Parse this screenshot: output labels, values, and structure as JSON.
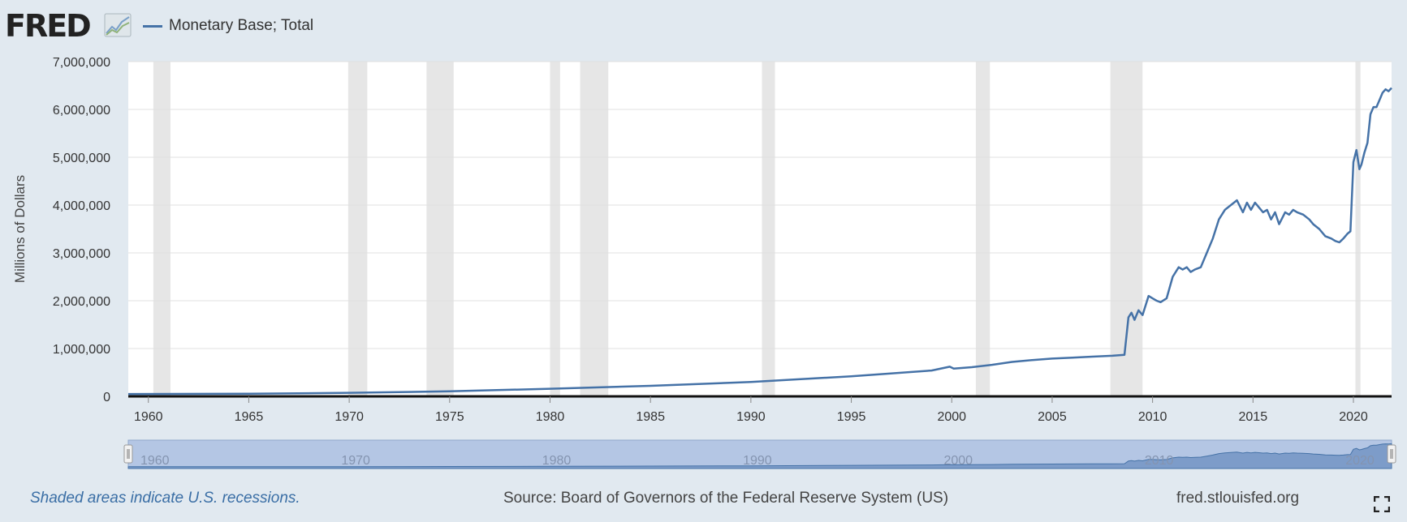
{
  "header": {
    "logo_text": "FRED",
    "logo_icon": "fred-chart-icon"
  },
  "colors": {
    "series": "#4572a7",
    "recession": "#e6e6e6",
    "background": "#e1e9f0",
    "plot_bg": "#ffffff",
    "navigator_fill": "#b4c6e4"
  },
  "chart_data": {
    "type": "line",
    "ylabel": "Millions of Dollars",
    "xlabel": "",
    "ylim": [
      0,
      7000000
    ],
    "xlim": [
      1959.0,
      2021.9
    ],
    "y_ticks": [
      0,
      1000000,
      2000000,
      3000000,
      4000000,
      5000000,
      6000000,
      7000000
    ],
    "y_tick_labels": [
      "0",
      "1,000,000",
      "2,000,000",
      "3,000,000",
      "4,000,000",
      "5,000,000",
      "6,000,000",
      "7,000,000"
    ],
    "x_ticks": [
      1960,
      1965,
      1970,
      1975,
      1980,
      1985,
      1990,
      1995,
      2000,
      2005,
      2010,
      2015,
      2020
    ],
    "x_tick_labels": [
      "1960",
      "1965",
      "1970",
      "1975",
      "1980",
      "1985",
      "1990",
      "1995",
      "2000",
      "2005",
      "2010",
      "2015",
      "2020"
    ],
    "grid": true,
    "legend": "top-left",
    "recessions": [
      [
        1960.25,
        1961.1
      ],
      [
        1969.95,
        1970.9
      ],
      [
        1973.85,
        1975.2
      ],
      [
        1980.0,
        1980.5
      ],
      [
        1981.5,
        1982.9
      ],
      [
        1990.55,
        1991.2
      ],
      [
        2001.2,
        2001.9
      ],
      [
        2007.9,
        2009.5
      ],
      [
        2020.1,
        2020.35
      ]
    ],
    "series": [
      {
        "name": "Monetary Base; Total",
        "x": [
          1959.0,
          1965.0,
          1970.0,
          1975.0,
          1980.0,
          1985.0,
          1990.0,
          1995.0,
          1999.0,
          1999.9,
          2000.1,
          2001.0,
          2002.0,
          2003.0,
          2004.0,
          2005.0,
          2006.0,
          2007.0,
          2008.0,
          2008.6,
          2008.8,
          2008.95,
          2009.1,
          2009.3,
          2009.5,
          2009.8,
          2010.0,
          2010.2,
          2010.4,
          2010.7,
          2011.0,
          2011.3,
          2011.5,
          2011.7,
          2011.9,
          2012.1,
          2012.4,
          2012.7,
          2013.0,
          2013.3,
          2013.6,
          2013.9,
          2014.2,
          2014.5,
          2014.7,
          2014.9,
          2015.1,
          2015.3,
          2015.5,
          2015.7,
          2015.9,
          2016.1,
          2016.3,
          2016.6,
          2016.8,
          2017.0,
          2017.2,
          2017.5,
          2017.8,
          2018.0,
          2018.3,
          2018.6,
          2018.9,
          2019.1,
          2019.3,
          2019.5,
          2019.7,
          2019.85,
          2020.0,
          2020.15,
          2020.3,
          2020.4,
          2020.55,
          2020.7,
          2020.85,
          2021.0,
          2021.15,
          2021.3,
          2021.45,
          2021.6,
          2021.75,
          2021.9
        ],
        "values": [
          50000,
          55000,
          75000,
          105000,
          160000,
          220000,
          300000,
          420000,
          540000,
          620000,
          580000,
          610000,
          660000,
          720000,
          760000,
          790000,
          810000,
          830000,
          850000,
          870000,
          1650000,
          1750000,
          1600000,
          1800000,
          1700000,
          2100000,
          2050000,
          2000000,
          1970000,
          2050000,
          2500000,
          2700000,
          2650000,
          2700000,
          2600000,
          2650000,
          2700000,
          3000000,
          3300000,
          3700000,
          3900000,
          4000000,
          4100000,
          3850000,
          4050000,
          3900000,
          4050000,
          3950000,
          3850000,
          3900000,
          3700000,
          3850000,
          3600000,
          3850000,
          3800000,
          3900000,
          3850000,
          3800000,
          3700000,
          3600000,
          3500000,
          3350000,
          3300000,
          3250000,
          3220000,
          3300000,
          3400000,
          3450000,
          4900000,
          5150000,
          4750000,
          4850000,
          5100000,
          5300000,
          5900000,
          6050000,
          6050000,
          6200000,
          6350000,
          6420000,
          6380000,
          6450000
        ]
      }
    ]
  },
  "navigator": {
    "ticks": [
      "1960",
      "1970",
      "1980",
      "1990",
      "2000",
      "2010",
      "2020"
    ]
  },
  "footer": {
    "note": "Shaded areas indicate U.S. recessions.",
    "source": "Source: Board of Governors of the Federal Reserve System (US)",
    "site": "fred.stlouisfed.org",
    "fullscreen_icon": "fullscreen-icon"
  }
}
